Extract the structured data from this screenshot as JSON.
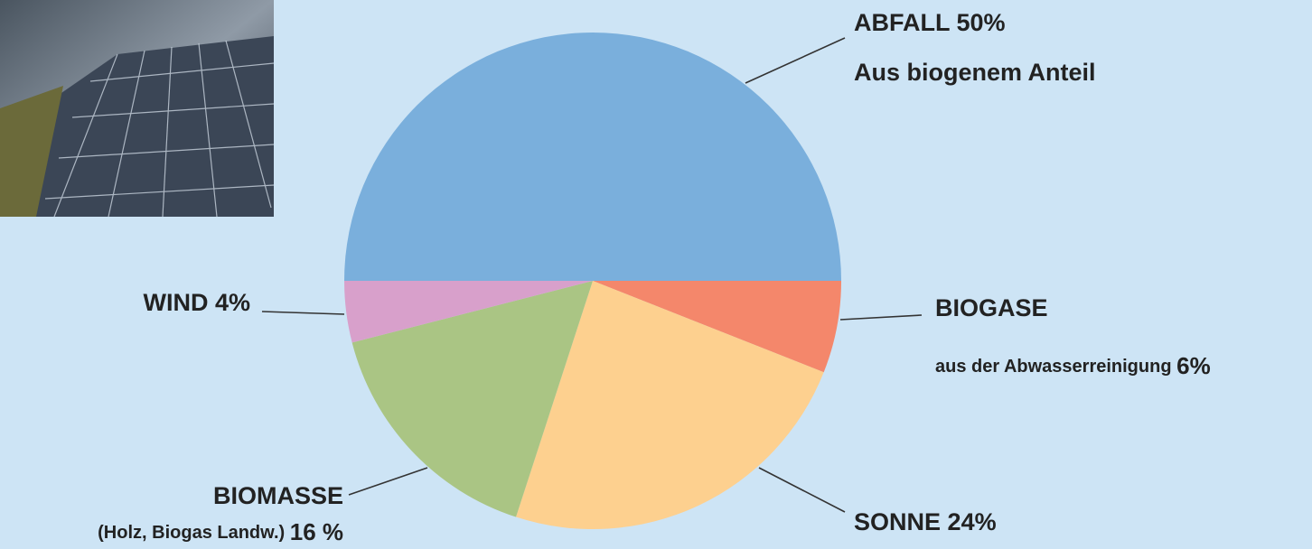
{
  "chart_data": {
    "type": "pie",
    "categories": [
      "ABFALL",
      "BIOGASE",
      "SONNE",
      "BIOMASSE",
      "WIND"
    ],
    "category_notes": [
      null,
      "aus der Abwasserreinigung",
      null,
      "(Holz, Biogas Landw.)",
      null
    ],
    "values": [
      50,
      6,
      24,
      16,
      4
    ],
    "value_labels": [
      "50%",
      "6%",
      "24%",
      "16 %",
      "4%"
    ],
    "colors": [
      "#7aafdc",
      "#f4876b",
      "#fdd08f",
      "#aac584",
      "#d8a0cb"
    ],
    "annotation": "Aus biogenem Anteil"
  }
}
